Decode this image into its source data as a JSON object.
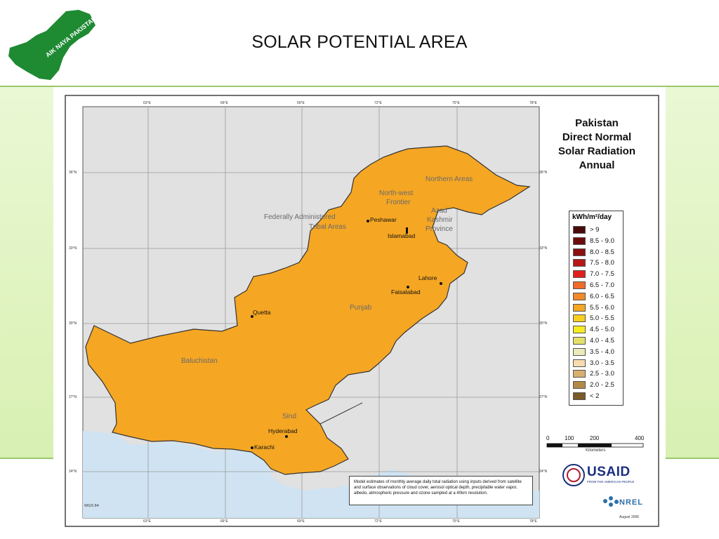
{
  "title": "SOLAR POTENTIAL AREA",
  "logo": {
    "text": "AIK NAYA PAKISTAN",
    "color": "#1e8a32"
  },
  "map": {
    "title_lines": [
      "Pakistan",
      "Direct Normal",
      "Solar Radiation",
      "Annual"
    ],
    "legend": {
      "unit": "kWh/m²/day",
      "items": [
        {
          "label": "> 9",
          "color": "#4a0a0a"
        },
        {
          "label": "8.5 - 9.0",
          "color": "#6e0c0c"
        },
        {
          "label": "8.0 - 8.5",
          "color": "#8c1010"
        },
        {
          "label": "7.5 - 8.0",
          "color": "#b81616"
        },
        {
          "label": "7.0 - 7.5",
          "color": "#e0201c"
        },
        {
          "label": "6.5 - 7.0",
          "color": "#f06a2a"
        },
        {
          "label": "6.0 - 6.5",
          "color": "#f2892a"
        },
        {
          "label": "5.5 - 6.0",
          "color": "#f5a623"
        },
        {
          "label": "5.0 - 5.5",
          "color": "#f8cf1e"
        },
        {
          "label": "4.5 - 5.0",
          "color": "#f6ec22"
        },
        {
          "label": "4.0 - 4.5",
          "color": "#e3e06a"
        },
        {
          "label": "3.5 - 4.0",
          "color": "#eceab8"
        },
        {
          "label": "3.0 - 3.5",
          "color": "#f6dcae"
        },
        {
          "label": "2.5 - 3.0",
          "color": "#d8b070"
        },
        {
          "label": "2.0 - 2.5",
          "color": "#b28a46"
        },
        {
          "label": "< 2",
          "color": "#7a5a26"
        }
      ]
    },
    "scale": {
      "ticks": [
        "0",
        "100",
        "200",
        "400"
      ],
      "unit": "Kilometers"
    },
    "longitudes": [
      "63°E",
      "66°E",
      "69°E",
      "72°E",
      "75°E",
      "78°E"
    ],
    "latitudes": [
      "36°N",
      "33°N",
      "30°N",
      "27°N",
      "24°N"
    ],
    "regions": [
      "Northern Areas",
      "North-west",
      "Frontier",
      "Federally Administered",
      "Tribal Areas",
      "Azad",
      "Kashmir",
      "Province",
      "Punjab",
      "Baluchistan",
      "Sind"
    ],
    "cities": [
      "Peshawar",
      "Islamabad",
      "Lahore",
      "Faisalabad",
      "Quetta",
      "Hyderabad",
      "Karachi"
    ],
    "note": "Model estimates of monthly average daily total radiation using inputs derived from satellite and surface observations of cloud cover, aerosol optical depth, precipitable water vapor, albedo, atmospheric pressure and ozone sampled at a 40km resolution.",
    "datum": "WGS 84",
    "date": "August 2006",
    "usaid": "USAID",
    "usaid_tagline": "FROM THE AMERICAN PEOPLE",
    "nrel": "NREL"
  }
}
